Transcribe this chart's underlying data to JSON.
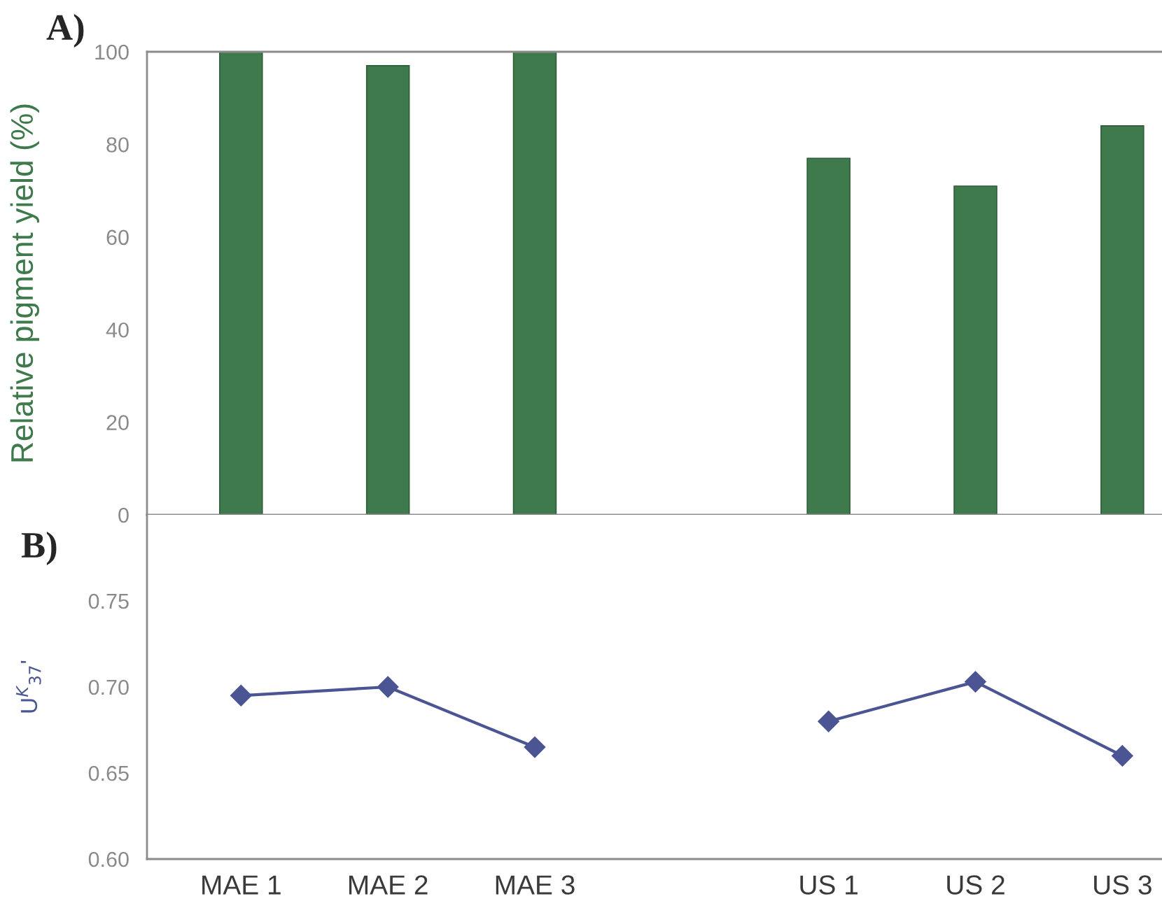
{
  "chart_data": [
    {
      "type": "bar",
      "title": "A)",
      "ylabel": "Relative pigment yield (%)",
      "categories": [
        null,
        null,
        null,
        null,
        null,
        null,
        null
      ],
      "values": [
        100,
        97,
        100,
        null,
        77,
        71,
        84
      ],
      "color": "#3f7a4c",
      "ylim": [
        0,
        100
      ],
      "yticks": [
        0,
        20,
        40,
        60,
        80,
        100
      ],
      "tick_labels": "y"
    },
    {
      "type": "line",
      "title": "B)",
      "ylabel": "U$^{K}$$_{37}$'",
      "categories": [
        "MAE 1",
        "MAE 2",
        "MAE 3",
        null,
        "US 1",
        "US 2",
        "US 3"
      ],
      "values": [
        0.695,
        0.7,
        0.665,
        null,
        0.68,
        0.703,
        0.66
      ],
      "color": "#4b5593",
      "marker": "diamond",
      "line_style": "solid",
      "ylim": [
        0.6,
        0.8
      ],
      "yticks": [
        {
          "value": 0.6,
          "label": "0.60"
        },
        0.65,
        {
          "value": 0.7,
          "label": "0.70"
        },
        0.75
      ]
    }
  ]
}
